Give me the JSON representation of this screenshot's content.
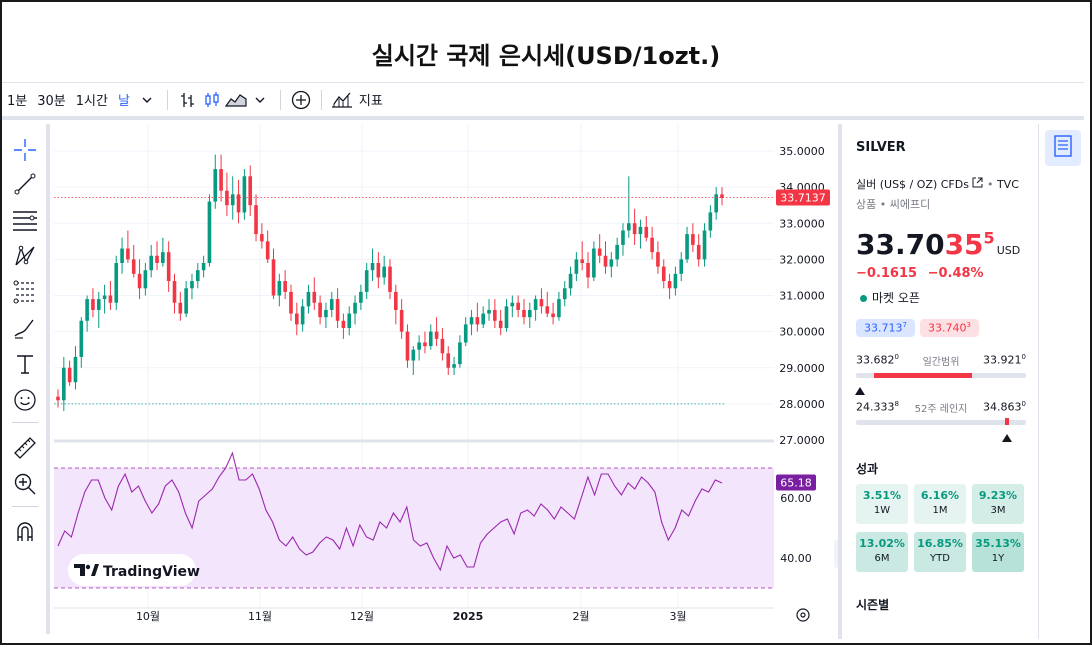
{
  "title": "실시간 국제 은시세(USD/1ozt.)",
  "toolbar": {
    "intervals": [
      "1분",
      "30분",
      "1시간",
      "날"
    ],
    "indicators_label": "지표"
  },
  "watermark": "TradingView",
  "chart_data": {
    "type": "candlestick",
    "x_labels": [
      "10월",
      "11월",
      "12월",
      "2025",
      "2월",
      "3월"
    ],
    "y_ticks": [
      "35.0000",
      "34.0000",
      "33.0000",
      "32.0000",
      "31.0000",
      "30.0000",
      "29.0000",
      "28.0000",
      "27.0000"
    ],
    "ylim": [
      27,
      35
    ],
    "last_price_label": "33.7137",
    "last_price": 33.7137,
    "low_line": 28.0,
    "rsi": {
      "ticks": [
        "60.00",
        "40.00"
      ],
      "ylim": [
        30,
        80
      ],
      "value_label": "65.18",
      "upper": 70,
      "lower": 30,
      "values": [
        44,
        49,
        47,
        55,
        62,
        66,
        66,
        60,
        56,
        64,
        68,
        62,
        64,
        59,
        55,
        58,
        64,
        66,
        62,
        55,
        50,
        59,
        61,
        63,
        67,
        70,
        75,
        66,
        66,
        68,
        63,
        56,
        52,
        46,
        44,
        47,
        43,
        41,
        42,
        45,
        47,
        46,
        43,
        50,
        44,
        51,
        47,
        46,
        52,
        50,
        55,
        52,
        57,
        46,
        44,
        45,
        40,
        36,
        44,
        40,
        41,
        37,
        37,
        45,
        48,
        50,
        52,
        53,
        48,
        55,
        56,
        54,
        58,
        56,
        53,
        57,
        55,
        53,
        60,
        67,
        61,
        68,
        68,
        64,
        61,
        65,
        63,
        67,
        65,
        62,
        52,
        46,
        50,
        56,
        54,
        59,
        63,
        62,
        66,
        65
      ],
      "color": "#9c27b0"
    },
    "candles": [
      [
        28.2,
        28.4,
        27.9,
        28.1
      ],
      [
        28.1,
        29.3,
        27.8,
        29.0
      ],
      [
        29.0,
        29.2,
        28.5,
        28.6
      ],
      [
        28.6,
        29.6,
        28.4,
        29.3
      ],
      [
        29.3,
        30.4,
        29.0,
        30.3
      ],
      [
        30.3,
        31.0,
        30.0,
        30.9
      ],
      [
        30.9,
        31.2,
        30.4,
        30.6
      ],
      [
        30.6,
        31.1,
        30.1,
        30.9
      ],
      [
        30.9,
        31.3,
        30.5,
        31.0
      ],
      [
        31.0,
        31.4,
        30.6,
        30.8
      ],
      [
        30.8,
        32.1,
        30.6,
        31.9
      ],
      [
        31.9,
        32.6,
        31.6,
        32.3
      ],
      [
        32.3,
        32.8,
        31.9,
        32.0
      ],
      [
        32.0,
        32.4,
        31.5,
        31.6
      ],
      [
        31.6,
        32.0,
        30.9,
        31.2
      ],
      [
        31.2,
        31.9,
        31.0,
        31.7
      ],
      [
        31.7,
        32.4,
        31.5,
        32.1
      ],
      [
        32.1,
        32.5,
        31.7,
        31.9
      ],
      [
        31.9,
        32.6,
        31.8,
        32.2
      ],
      [
        32.2,
        32.5,
        31.1,
        31.4
      ],
      [
        31.4,
        31.6,
        30.5,
        30.8
      ],
      [
        30.8,
        31.1,
        30.3,
        30.5
      ],
      [
        30.5,
        31.4,
        30.4,
        31.2
      ],
      [
        31.2,
        31.6,
        30.9,
        31.4
      ],
      [
        31.4,
        31.9,
        31.2,
        31.7
      ],
      [
        31.7,
        32.1,
        31.5,
        31.9
      ],
      [
        31.9,
        33.8,
        31.8,
        33.6
      ],
      [
        33.6,
        34.9,
        33.4,
        34.5
      ],
      [
        34.5,
        34.9,
        33.6,
        33.9
      ],
      [
        33.9,
        34.4,
        33.2,
        33.5
      ],
      [
        33.5,
        34.3,
        33.1,
        33.8
      ],
      [
        33.8,
        34.2,
        33.0,
        33.3
      ],
      [
        33.3,
        34.5,
        33.1,
        34.3
      ],
      [
        34.3,
        34.6,
        33.2,
        33.5
      ],
      [
        33.5,
        33.8,
        32.5,
        32.7
      ],
      [
        32.7,
        33.0,
        32.3,
        32.5
      ],
      [
        32.5,
        32.8,
        31.9,
        32.0
      ],
      [
        32.0,
        32.3,
        30.9,
        31.0
      ],
      [
        31.0,
        31.6,
        30.7,
        31.4
      ],
      [
        31.4,
        31.7,
        30.9,
        31.1
      ],
      [
        31.1,
        31.3,
        30.3,
        30.5
      ],
      [
        30.5,
        30.8,
        29.9,
        30.2
      ],
      [
        30.2,
        30.9,
        30.0,
        30.7
      ],
      [
        30.7,
        31.3,
        30.5,
        31.1
      ],
      [
        31.1,
        31.5,
        30.6,
        30.8
      ],
      [
        30.8,
        31.0,
        30.2,
        30.4
      ],
      [
        30.4,
        30.8,
        30.1,
        30.6
      ],
      [
        30.6,
        31.1,
        30.4,
        30.9
      ],
      [
        30.9,
        31.2,
        30.1,
        30.3
      ],
      [
        30.3,
        30.5,
        29.8,
        30.1
      ],
      [
        30.1,
        30.7,
        29.9,
        30.5
      ],
      [
        30.5,
        31.0,
        30.2,
        30.8
      ],
      [
        30.8,
        31.3,
        30.6,
        31.1
      ],
      [
        31.1,
        31.9,
        30.9,
        31.7
      ],
      [
        31.7,
        32.3,
        31.4,
        31.9
      ],
      [
        31.9,
        32.2,
        31.2,
        31.5
      ],
      [
        31.5,
        32.1,
        31.3,
        31.8
      ],
      [
        31.8,
        32.0,
        30.9,
        31.1
      ],
      [
        31.1,
        31.3,
        30.2,
        30.6
      ],
      [
        30.6,
        30.9,
        29.8,
        30.0
      ],
      [
        30.0,
        30.2,
        29.0,
        29.2
      ],
      [
        29.2,
        29.6,
        28.8,
        29.5
      ],
      [
        29.5,
        29.9,
        29.2,
        29.7
      ],
      [
        29.7,
        30.0,
        29.4,
        29.6
      ],
      [
        29.6,
        30.2,
        29.5,
        30.0
      ],
      [
        30.0,
        30.4,
        29.6,
        29.8
      ],
      [
        29.8,
        30.1,
        29.2,
        29.4
      ],
      [
        29.4,
        29.6,
        28.8,
        29.0
      ],
      [
        29.0,
        29.3,
        28.8,
        29.1
      ],
      [
        29.1,
        29.9,
        29.0,
        29.7
      ],
      [
        29.7,
        30.4,
        29.6,
        30.2
      ],
      [
        30.2,
        30.6,
        29.9,
        30.4
      ],
      [
        30.4,
        30.8,
        30.0,
        30.2
      ],
      [
        30.2,
        30.7,
        30.1,
        30.5
      ],
      [
        30.5,
        30.9,
        30.3,
        30.6
      ],
      [
        30.6,
        30.9,
        30.1,
        30.3
      ],
      [
        30.3,
        30.6,
        29.9,
        30.1
      ],
      [
        30.1,
        30.9,
        30.0,
        30.7
      ],
      [
        30.7,
        31.0,
        30.4,
        30.8
      ],
      [
        30.8,
        31.0,
        30.4,
        30.6
      ],
      [
        30.6,
        30.9,
        30.2,
        30.4
      ],
      [
        30.4,
        30.8,
        30.1,
        30.6
      ],
      [
        30.6,
        31.0,
        30.3,
        30.9
      ],
      [
        30.9,
        31.2,
        30.5,
        30.7
      ],
      [
        30.7,
        31.1,
        30.4,
        30.5
      ],
      [
        30.5,
        30.8,
        30.2,
        30.4
      ],
      [
        30.4,
        31.1,
        30.3,
        30.9
      ],
      [
        30.9,
        31.4,
        30.7,
        31.2
      ],
      [
        31.2,
        31.8,
        31.0,
        31.6
      ],
      [
        31.6,
        32.2,
        31.4,
        32.0
      ],
      [
        32.0,
        32.5,
        31.7,
        31.9
      ],
      [
        31.9,
        32.2,
        31.2,
        31.5
      ],
      [
        31.5,
        32.5,
        31.4,
        32.3
      ],
      [
        32.3,
        32.7,
        31.9,
        32.1
      ],
      [
        32.1,
        32.5,
        31.6,
        31.8
      ],
      [
        31.8,
        32.2,
        31.5,
        32.0
      ],
      [
        32.0,
        32.6,
        31.8,
        32.4
      ],
      [
        32.4,
        33.0,
        32.1,
        32.8
      ],
      [
        32.8,
        34.3,
        32.6,
        33.0
      ],
      [
        33.0,
        33.4,
        32.4,
        32.7
      ],
      [
        32.7,
        33.1,
        32.3,
        32.9
      ],
      [
        32.9,
        33.2,
        32.5,
        32.6
      ],
      [
        32.6,
        32.9,
        32.0,
        32.2
      ],
      [
        32.2,
        32.5,
        31.6,
        31.8
      ],
      [
        31.8,
        32.0,
        31.2,
        31.4
      ],
      [
        31.4,
        31.6,
        30.9,
        31.2
      ],
      [
        31.2,
        31.8,
        31.0,
        31.6
      ],
      [
        31.6,
        32.2,
        31.4,
        32.0
      ],
      [
        32.0,
        32.9,
        31.9,
        32.7
      ],
      [
        32.7,
        33.0,
        32.2,
        32.4
      ],
      [
        32.4,
        32.7,
        31.8,
        32.0
      ],
      [
        32.0,
        33.0,
        31.8,
        32.8
      ],
      [
        32.8,
        33.5,
        32.6,
        33.3
      ],
      [
        33.3,
        34.0,
        33.1,
        33.8
      ],
      [
        33.8,
        34.0,
        33.5,
        33.7
      ]
    ]
  },
  "panel": {
    "symbol": "SILVER",
    "description": "실버 (US$ / OZ) CFDs",
    "exchange": "TVC",
    "category": "상품",
    "subcategory": "씨에프디",
    "price_main": "33.70",
    "price_red": "35",
    "price_sup": "5",
    "currency": "USD",
    "change": "−0.1615",
    "change_pct": "−0.48%",
    "market_status": "마켓 오픈",
    "bid": "33.713",
    "bid_sup": "7",
    "ask": "33.740",
    "ask_sup": "3",
    "day_low": "33.682",
    "day_low_sup": "0",
    "day_range_label": "일간범위",
    "day_high": "33.921",
    "day_high_sup": "0",
    "day_fill": 0.68,
    "wk_low": "24.333",
    "wk_low_sup": "8",
    "wk_range_label": "52주 레인지",
    "wk_high": "34.863",
    "wk_high_sup": "0",
    "wk_fill": 0.89,
    "performance_title": "성과",
    "performance": [
      {
        "value": "3.51%",
        "period": "1W"
      },
      {
        "value": "6.16%",
        "period": "1M"
      },
      {
        "value": "9.23%",
        "period": "3M"
      },
      {
        "value": "13.02%",
        "period": "6M"
      },
      {
        "value": "16.85%",
        "period": "YTD"
      },
      {
        "value": "35.13%",
        "period": "1Y"
      }
    ],
    "seasonal_title": "시즌별"
  },
  "colors": {
    "up": "#089981",
    "down": "#f23645",
    "accent": "#2962ff"
  }
}
